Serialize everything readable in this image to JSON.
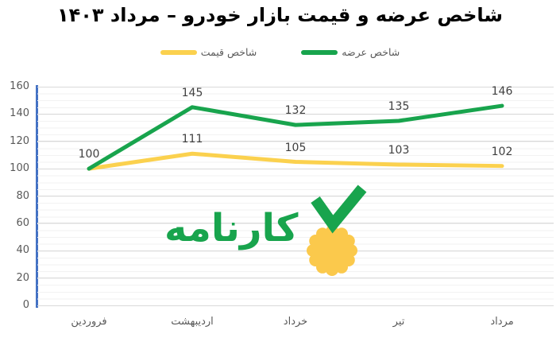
{
  "title": "شاخص عرضه و قیمت بازار خودرو – مرداد ۱۴۰۳",
  "legend": {
    "items": [
      {
        "label": "شاخص قیمت",
        "color": "#FBD14E"
      },
      {
        "label": "شاخص عرضه",
        "color": "#18A44D"
      }
    ]
  },
  "watermark": {
    "wordmark": "کارنامه",
    "green": "#18A44D",
    "yellow": "#FBC94C"
  },
  "chart_data": {
    "type": "line",
    "title": "شاخص عرضه و قیمت بازار خودرو – مرداد ۱۴۰۳",
    "categories": [
      "فروردین",
      "اردیبهشت",
      "خرداد",
      "تیر",
      "مرداد"
    ],
    "series": [
      {
        "name": "شاخص قیمت",
        "color": "#FBD14E",
        "values": [
          100,
          111,
          105,
          103,
          102
        ],
        "labels": [
          null,
          111,
          105,
          103,
          102
        ]
      },
      {
        "name": "شاخص عرضه",
        "color": "#18A44D",
        "values": [
          100,
          145,
          132,
          135,
          146
        ],
        "labels": [
          100,
          145,
          132,
          135,
          146
        ]
      }
    ],
    "ylim": [
      0,
      160
    ],
    "yticks": [
      0,
      20,
      40,
      60,
      80,
      100,
      120,
      140,
      160
    ],
    "minor_unit": 5,
    "grid": "major+minor",
    "legend_position": "top",
    "line_width": 5,
    "colors": {
      "axis_line": "#4472C4",
      "major_grid": "#D9D9D9",
      "minor_grid": "#F2F2F2",
      "tick_label": "#595959",
      "data_label": "#404040",
      "title": "#000000"
    }
  }
}
